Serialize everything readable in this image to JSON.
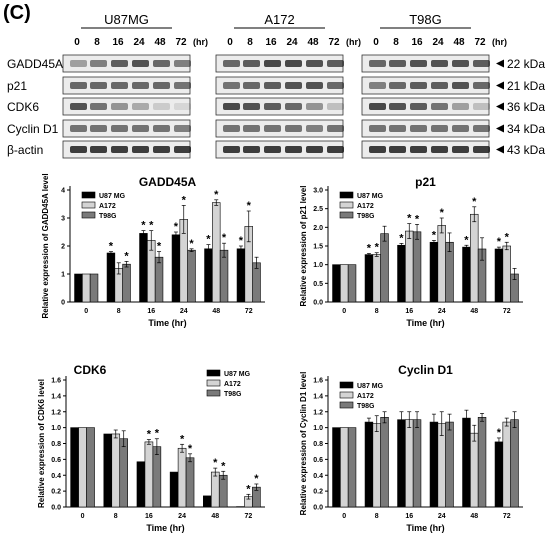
{
  "panel_label": "(C)",
  "blot": {
    "cell_lines": [
      "U87MG",
      "A172",
      "T98G"
    ],
    "timepoints": [
      "0",
      "8",
      "16",
      "24",
      "48",
      "72"
    ],
    "time_unit": "(hr)",
    "proteins": [
      {
        "name": "GADD45A",
        "size": "22 kDa"
      },
      {
        "name": "p21",
        "size": "21 kDa"
      },
      {
        "name": "CDK6",
        "size": "36 kDa"
      },
      {
        "name": "Cyclin D1",
        "size": "34 kDa"
      },
      {
        "name": "β-actin",
        "size": "43 kDa"
      }
    ]
  },
  "colors": {
    "u87": "#000000",
    "a172": "#d4d4d4",
    "t98": "#7a7a7a"
  },
  "chart_data": [
    {
      "type": "bar",
      "title": "GADD45A",
      "categories": [
        "0",
        "8",
        "16",
        "24",
        "48",
        "72"
      ],
      "xlabel": "Time (hr)",
      "ylabel": "Relative expression of GADD45A level",
      "ylim": [
        0,
        4
      ],
      "yticks": [
        "0",
        "1",
        "2",
        "3",
        "4"
      ],
      "legend_position": "top-left",
      "series": [
        {
          "name": "U87 MG",
          "values": [
            1,
            1.75,
            2.45,
            2.4,
            1.9,
            1.9
          ],
          "errors": [
            0,
            0.05,
            0.1,
            0.1,
            0.15,
            0.1
          ],
          "sig": [
            false,
            true,
            true,
            true,
            true,
            true
          ]
        },
        {
          "name": "A172",
          "values": [
            1,
            1.2,
            2.2,
            2.95,
            3.55,
            2.7
          ],
          "errors": [
            0,
            0.2,
            0.35,
            0.5,
            0.1,
            0.55
          ],
          "sig": [
            false,
            false,
            true,
            true,
            true,
            true
          ]
        },
        {
          "name": "T98G",
          "values": [
            1,
            1.35,
            1.6,
            1.85,
            1.85,
            1.4
          ],
          "errors": [
            0,
            0.1,
            0.2,
            0.05,
            0.25,
            0.2
          ],
          "sig": [
            false,
            true,
            true,
            true,
            true,
            false
          ]
        }
      ]
    },
    {
      "type": "bar",
      "title": "p21",
      "categories": [
        "0",
        "8",
        "16",
        "24",
        "48",
        "72"
      ],
      "xlabel": "Time (hr)",
      "ylabel": "Relative expression of p21 level",
      "ylim": [
        0,
        3
      ],
      "yticks": [
        "0.0",
        "0.5",
        "1.0",
        "1.5",
        "2.0",
        "2.5",
        "3.0"
      ],
      "legend_position": "top-left",
      "series": [
        {
          "name": "U87 MG",
          "values": [
            1,
            1.27,
            1.52,
            1.6,
            1.47,
            1.42
          ],
          "errors": [
            0,
            0.03,
            0.05,
            0.05,
            0.05,
            0.05
          ],
          "sig": [
            false,
            true,
            true,
            true,
            true,
            true
          ]
        },
        {
          "name": "A172",
          "values": [
            1,
            1.27,
            1.9,
            2.05,
            2.35,
            1.5
          ],
          "errors": [
            0,
            0.05,
            0.2,
            0.2,
            0.2,
            0.1
          ],
          "sig": [
            false,
            true,
            true,
            true,
            true,
            true
          ]
        },
        {
          "name": "T98G",
          "values": [
            1,
            1.83,
            1.88,
            1.6,
            1.42,
            0.75
          ],
          "errors": [
            0,
            0.2,
            0.2,
            0.25,
            0.3,
            0.15
          ],
          "sig": [
            false,
            false,
            true,
            false,
            false,
            false
          ]
        }
      ]
    },
    {
      "type": "bar",
      "title": "CDK6",
      "categories": [
        "0",
        "8",
        "16",
        "24",
        "48",
        "72"
      ],
      "xlabel": "Time (hr)",
      "ylabel": "Relative expression of CDK6 level",
      "ylim": [
        0,
        1.6
      ],
      "yticks": [
        "0.0",
        "0.2",
        "0.4",
        "0.6",
        "0.8",
        "1.0",
        "1.2",
        "1.4",
        "1.6"
      ],
      "legend_position": "top-right",
      "series": [
        {
          "name": "U87 MG",
          "values": [
            1,
            0.92,
            0.57,
            0.44,
            0.14,
            0.005
          ],
          "errors": [
            0,
            0,
            0,
            0,
            0,
            0
          ],
          "sig": [
            false,
            false,
            false,
            false,
            false,
            false
          ]
        },
        {
          "name": "A172",
          "values": [
            1,
            0.92,
            0.82,
            0.74,
            0.44,
            0.13
          ],
          "errors": [
            0,
            0.05,
            0.03,
            0.05,
            0.05,
            0.03
          ],
          "sig": [
            false,
            false,
            true,
            true,
            true,
            true
          ]
        },
        {
          "name": "T98G",
          "values": [
            1,
            0.86,
            0.76,
            0.62,
            0.4,
            0.25
          ],
          "errors": [
            0,
            0.1,
            0.1,
            0.05,
            0.05,
            0.04
          ],
          "sig": [
            false,
            false,
            true,
            true,
            true,
            true
          ]
        }
      ]
    },
    {
      "type": "bar",
      "title": "Cyclin D1",
      "categories": [
        "0",
        "8",
        "16",
        "24",
        "48",
        "72"
      ],
      "xlabel": "Time (hr)",
      "ylabel": "Relative expression of Cyclin D1 level",
      "ylim": [
        0,
        1.6
      ],
      "yticks": [
        "0.0",
        "0.2",
        "0.4",
        "0.6",
        "0.8",
        "1.0",
        "1.2",
        "1.4",
        "1.6"
      ],
      "legend_position": "top-left",
      "series": [
        {
          "name": "U87 MG",
          "values": [
            1,
            1.07,
            1.1,
            1.07,
            1.12,
            0.82
          ],
          "errors": [
            0,
            0.05,
            0.1,
            0.1,
            0.1,
            0.05
          ],
          "sig": [
            false,
            false,
            false,
            false,
            false,
            true
          ]
        },
        {
          "name": "A172",
          "values": [
            1,
            1.05,
            1.1,
            1.05,
            0.93,
            1.07
          ],
          "errors": [
            0,
            0.1,
            0.1,
            0.15,
            0.1,
            0.05
          ],
          "sig": [
            false,
            false,
            false,
            false,
            false,
            false
          ]
        },
        {
          "name": "T98G",
          "values": [
            1,
            1.13,
            1.1,
            1.07,
            1.13,
            1.1
          ],
          "errors": [
            0,
            0.07,
            0.1,
            0.1,
            0.05,
            0.1
          ],
          "sig": [
            false,
            false,
            false,
            false,
            false,
            false
          ]
        }
      ]
    }
  ]
}
